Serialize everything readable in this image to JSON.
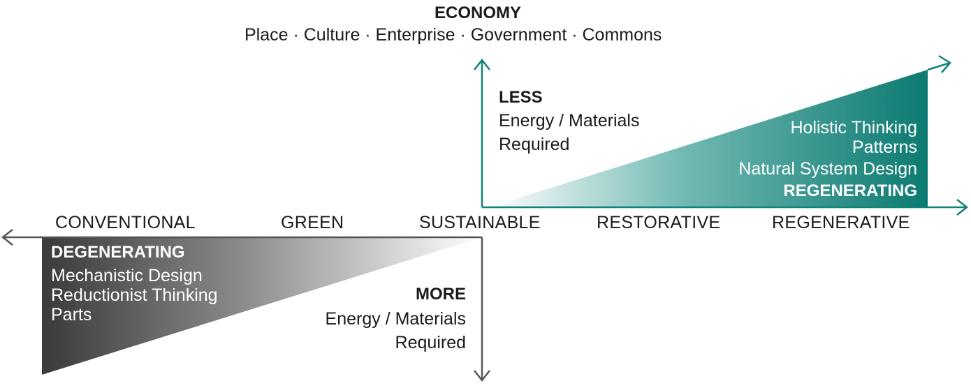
{
  "header": {
    "title": "ECONOMY",
    "subtitle": "Place · Culture · Enterprise · Government · Commons"
  },
  "upper": {
    "heading": "LESS",
    "line1": "Energy / Materials",
    "line2": "Required"
  },
  "lower": {
    "heading": "MORE",
    "line1": "Energy / Materials",
    "line2": "Required"
  },
  "axis": {
    "stages": [
      "CONVENTIONAL",
      "GREEN",
      "SUSTAINABLE",
      "RESTORATIVE",
      "REGENERATIVE"
    ]
  },
  "degenerating": {
    "title": "DEGENERATING",
    "items": [
      "Mechanistic Design",
      "Reductionist Thinking",
      "Parts"
    ]
  },
  "regenerating": {
    "items": [
      "Holistic Thinking",
      "Patterns",
      "Natural System Design"
    ],
    "title": "REGENERATING"
  },
  "colors": {
    "teal": "#0f8378",
    "teal_dark": "#0b7a70",
    "gray_dark": "#3a3a3a",
    "axis_gray": "#555555"
  }
}
